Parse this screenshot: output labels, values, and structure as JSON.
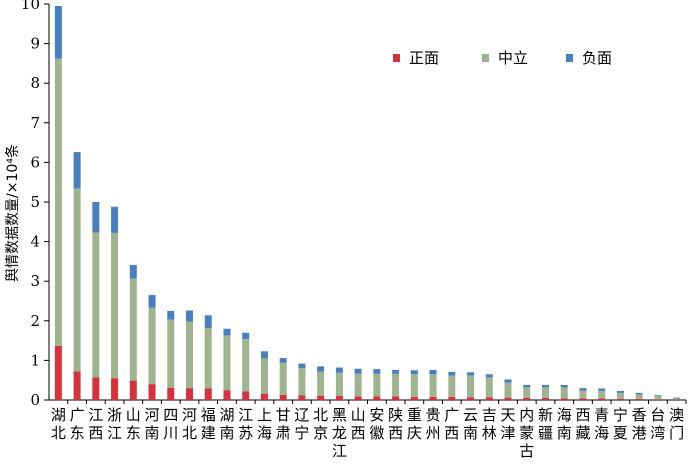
{
  "chart_data": {
    "type": "bar",
    "stacked": true,
    "ylabel": "舆情数据数量/×10⁴条",
    "ylim": [
      0,
      10
    ],
    "yticks": [
      0,
      1,
      2,
      3,
      4,
      5,
      6,
      7,
      8,
      9,
      10
    ],
    "grid": false,
    "legend_position": "top-right",
    "categories": [
      "湖北",
      "广东",
      "江西",
      "浙江",
      "山东",
      "河南",
      "四川",
      "河北",
      "福建",
      "湖南",
      "江苏",
      "上海",
      "甘肃",
      "辽宁",
      "北京",
      "黑龙江",
      "山西",
      "安徽",
      "陕西",
      "重庆",
      "贵州",
      "广西",
      "云南",
      "吉林",
      "天津",
      "内蒙古",
      "新疆",
      "海南",
      "西藏",
      "青海",
      "宁夏",
      "香港",
      "台湾",
      "澳门"
    ],
    "series": [
      {
        "name": "正面",
        "color": "#d6323e",
        "values": [
          1.37,
          0.72,
          0.57,
          0.55,
          0.49,
          0.4,
          0.31,
          0.3,
          0.29,
          0.25,
          0.22,
          0.16,
          0.13,
          0.12,
          0.11,
          0.1,
          0.09,
          0.09,
          0.09,
          0.08,
          0.08,
          0.08,
          0.07,
          0.07,
          0.06,
          0.05,
          0.05,
          0.04,
          0.04,
          0.04,
          0.03,
          0.03,
          0.02,
          0.01
        ]
      },
      {
        "name": "中立",
        "color": "#9db48f",
        "values": [
          7.25,
          4.62,
          3.66,
          3.67,
          2.58,
          1.93,
          1.72,
          1.68,
          1.53,
          1.38,
          1.32,
          0.89,
          0.81,
          0.68,
          0.61,
          0.59,
          0.58,
          0.57,
          0.57,
          0.57,
          0.57,
          0.54,
          0.55,
          0.5,
          0.38,
          0.27,
          0.27,
          0.28,
          0.2,
          0.19,
          0.15,
          0.11,
          0.08,
          0.03
        ]
      },
      {
        "name": "负面",
        "color": "#4a7fbf",
        "values": [
          1.33,
          0.92,
          0.77,
          0.66,
          0.34,
          0.32,
          0.22,
          0.28,
          0.32,
          0.17,
          0.16,
          0.18,
          0.12,
          0.12,
          0.13,
          0.13,
          0.12,
          0.12,
          0.1,
          0.1,
          0.11,
          0.09,
          0.08,
          0.08,
          0.08,
          0.06,
          0.06,
          0.06,
          0.06,
          0.06,
          0.05,
          0.04,
          0.02,
          0.02
        ]
      }
    ]
  }
}
